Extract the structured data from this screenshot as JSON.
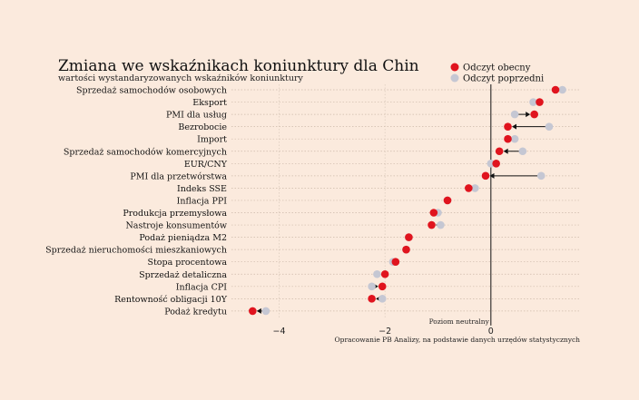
{
  "chart_data": {
    "type": "dot-arrow",
    "title": "Zmiana we wskaźnikach koniunktury dla Chin",
    "subtitle": "wartości wystandaryzowanych wskaźników koniunktury",
    "x_ticks": [
      -4,
      -2,
      0
    ],
    "xlim": [
      -4.9,
      1.7
    ],
    "legend": [
      {
        "name": "Odczyt obecny",
        "color": "#e0141e"
      },
      {
        "name": "Odczyt poprzedni",
        "color": "#c5c7d3"
      }
    ],
    "legend_position": "top-right",
    "neutral_label": "Poziom neutralny",
    "source": "Opracowanie PB Analizy, na podstawie danych urzędów statystycznych",
    "categories": [
      "Sprzedaż samochodów osobowych",
      "Eksport",
      "PMI dla usług",
      "Bezrobocie",
      "Import",
      "Sprzedaż samochodów komercyjnych",
      "EUR/CNY",
      "PMI dla przetwórstwa",
      "Indeks SSE",
      "Inflacja PPI",
      "Produkcja przemysłowa",
      "Nastroje konsumentów",
      "Podaż pieniądza M2",
      "Sprzedaż nieruchomości mieszkaniowych",
      "Stopa procentowa",
      "Sprzedaż detaliczna",
      "Inflacja CPI",
      "Rentowność obligacji 10Y",
      "Podaż kredytu"
    ],
    "series": [
      {
        "name": "Odczyt obecny",
        "values": [
          1.22,
          0.92,
          0.82,
          0.32,
          0.32,
          0.16,
          0.1,
          -0.1,
          -0.42,
          -0.82,
          -1.08,
          -1.12,
          -1.55,
          -1.6,
          -1.8,
          -2.0,
          -2.05,
          -2.25,
          -4.5
        ]
      },
      {
        "name": "Odczyt poprzedni",
        "values": [
          1.35,
          0.8,
          0.45,
          1.1,
          0.45,
          0.6,
          0.0,
          0.95,
          -0.3,
          -0.82,
          -1.0,
          -0.95,
          -1.55,
          -1.6,
          -1.85,
          -2.15,
          -2.25,
          -2.05,
          -4.25
        ]
      }
    ]
  }
}
